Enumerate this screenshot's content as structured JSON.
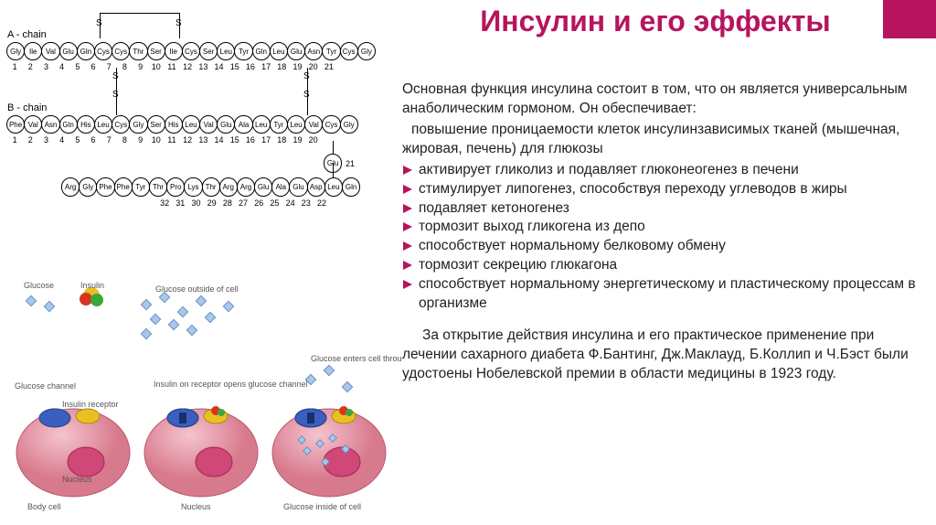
{
  "accent_color": "#b6145f",
  "title": {
    "text": "Инсулин и его эффекты",
    "color": "#b6145f",
    "fontsize": 32
  },
  "body": {
    "intro1": "Основная функция инсулина состоит в том, что он является универсальным анаболическим гормоном. Он обеспечивает:",
    "intro2": "повышение проницаемости клеток инсулинзависимых тканей (мышечная, жировая, печень) для глюкозы",
    "bullets": [
      "активирует гликолиз и подавляет глюконеогенез в печени",
      "стимулирует липогенез, способствуя переходу углеводов в жиры",
      "подавляет кетоногенез",
      "тормозит выход гликогена из депо",
      "способствует нормальному белковому обмену",
      "тормозит секрецию глюкагона",
      "способствует нормальному энергетическому и пластическому процессам в организме"
    ],
    "footer": "За открытие действия инсулина и его практическое применение при лечении сахарного диабета Ф.Бантинг, Дж.Маклауд, Б.Коллип и Ч.Бэст были удостоены Нобелевской премии в области медицины в 1923 году.",
    "bullet_color": "#b6145f",
    "text_color": "#222222",
    "fontsize": 15.5
  },
  "structure": {
    "labelA": "A - chain",
    "labelB": "B - chain",
    "chainA": [
      "Gly",
      "Ile",
      "Val",
      "Glu",
      "Gln",
      "Cys",
      "Cys",
      "Thr",
      "Ser",
      "Ile",
      "Cys",
      "Ser",
      "Leu",
      "Tyr",
      "Gln",
      "Leu",
      "Glu",
      "Asn",
      "Tyr",
      "Cys",
      "Gly"
    ],
    "numsA": [
      "1",
      "2",
      "3",
      "4",
      "5",
      "6",
      "7",
      "8",
      "9",
      "10",
      "11",
      "12",
      "13",
      "14",
      "15",
      "16",
      "17",
      "18",
      "19",
      "20",
      "21"
    ],
    "chainB": [
      "Phe",
      "Val",
      "Asn",
      "Gln",
      "His",
      "Leu",
      "Cys",
      "Gly",
      "Ser",
      "His",
      "Leu",
      "Val",
      "Glu",
      "Ala",
      "Leu",
      "Tyr",
      "Leu",
      "Val",
      "Cys",
      "Gly"
    ],
    "numsB": [
      "1",
      "2",
      "3",
      "4",
      "5",
      "6",
      "7",
      "8",
      "9",
      "10",
      "11",
      "12",
      "13",
      "14",
      "15",
      "16",
      "17",
      "18",
      "19",
      "20"
    ],
    "glu21": "Glu",
    "glu21num": "21",
    "chainB2": [
      "Arg",
      "Gly",
      "Phe",
      "Phe",
      "Tyr",
      "Thr",
      "Pro",
      "Lys",
      "Thr",
      "Arg",
      "Arg",
      "Glu",
      "Ala",
      "Glu",
      "Asp",
      "Leu",
      "Gln"
    ],
    "numsB2": [
      "32",
      "31",
      "30",
      "29",
      "28",
      "27",
      "26",
      "25",
      "24",
      "23",
      "22"
    ],
    "ss": "S"
  },
  "cells": {
    "labels": {
      "glucose": "Glucose",
      "insulin": "Insulin",
      "outside": "Glucose outside of cell",
      "channel": "Glucose channel",
      "receptor": "Insulin receptor",
      "opens": "Insulin on receptor opens glucose channel",
      "enters": "Glucose enters cell through glucose channel",
      "nucleus": "Nucleus",
      "bodycell": "Body cell",
      "inside": "Glucose inside of cell"
    },
    "colors": {
      "cell": "#e89aa8",
      "cell_dark": "#c76b7e",
      "nucleus": "#d04878",
      "channel": "#3a5fbf",
      "receptor": "#e8c022",
      "insulin_r": "#d8331f",
      "insulin_g": "#3aa83a",
      "glucose": "#a8c8e8"
    }
  }
}
